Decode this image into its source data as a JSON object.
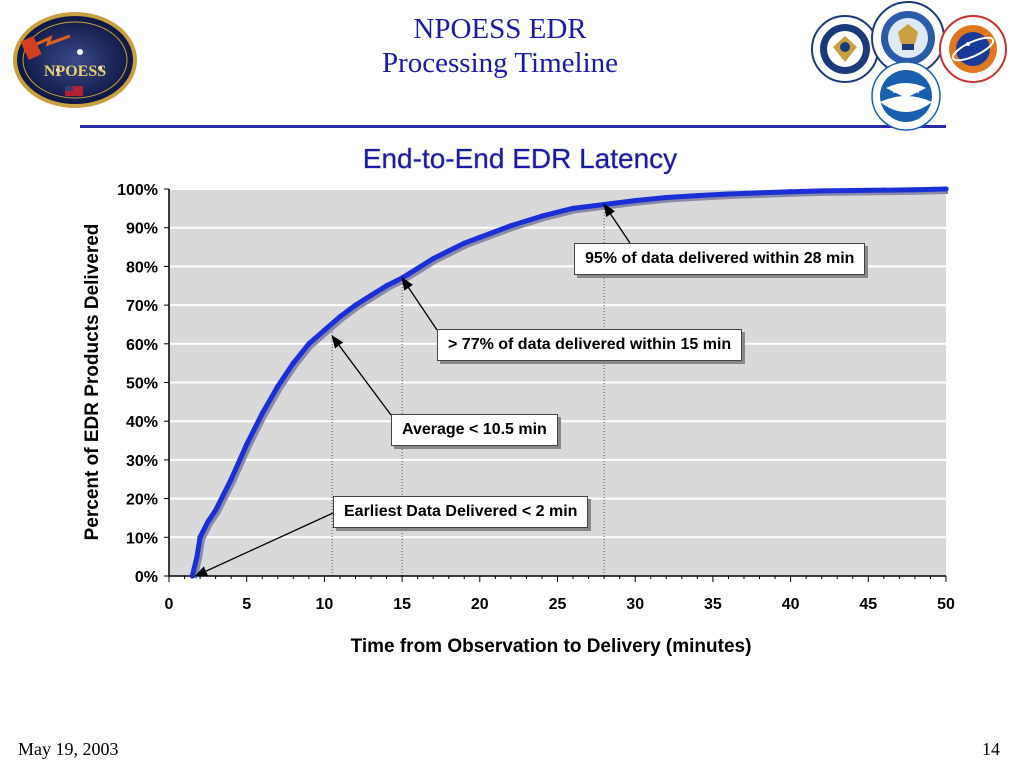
{
  "header": {
    "title_line1": "NPOESS EDR",
    "title_line2": "Processing Timeline"
  },
  "logos": {
    "left": {
      "text_top": "National Polar-orbiting Operational Environmental Satellite System",
      "text_main": "NPOESS"
    },
    "seals": [
      {
        "name": "dod-seal",
        "text": "DEPARTMENT OF DEFENSE",
        "color": "#1a3a7a"
      },
      {
        "name": "commerce-seal",
        "text": "DEPARTMENT OF COMMERCE",
        "color": "#1a3a7a"
      },
      {
        "name": "nasa-seal",
        "text": "NATIONAL AERONAUTICS AND SPACE ADMINISTRATION",
        "color": "#1a3a7a"
      },
      {
        "name": "noaa-seal",
        "text": "NOAA",
        "color": "#1a5fb0"
      }
    ]
  },
  "footer": {
    "date": "May 19, 2003",
    "page": "14"
  },
  "annotations": [
    {
      "label": "95% of data delivered within 28 min",
      "x": 28,
      "y": 96
    },
    {
      "label": "> 77% of data delivered within 15 min",
      "x": 15,
      "y": 77
    },
    {
      "label": "Average < 10.5 min",
      "x": 10.5,
      "y": 62
    },
    {
      "label": "Earliest Data Delivered < 2 min",
      "x": 1.7,
      "y": 0
    }
  ],
  "chart_data": {
    "type": "line",
    "title": "End-to-End EDR Latency",
    "xlabel": "Time from Observation to Delivery (minutes)",
    "ylabel": "Percent of EDR Products  Delivered",
    "xlim": [
      0,
      50
    ],
    "ylim": [
      0,
      100
    ],
    "x_ticks": [
      "0",
      "5",
      "10",
      "15",
      "20",
      "25",
      "30",
      "35",
      "40",
      "45",
      "50"
    ],
    "y_ticks": [
      "0%",
      "10%",
      "20%",
      "30%",
      "40%",
      "50%",
      "60%",
      "70%",
      "80%",
      "90%",
      "100%"
    ],
    "grid": true,
    "reference_lines_x": [
      10.5,
      15,
      28
    ],
    "series": [
      {
        "color": "#1a2fd6",
        "x": [
          1.5,
          1.8,
          2,
          2.5,
          3,
          3.5,
          4,
          5,
          6,
          7,
          8,
          9,
          10,
          11,
          12,
          13,
          14,
          15,
          16,
          17,
          18,
          19,
          20,
          22,
          24,
          26,
          28,
          30,
          32,
          34,
          36,
          38,
          40,
          42,
          44,
          46,
          48,
          50
        ],
        "y": [
          0,
          5,
          10,
          14,
          17,
          21,
          25,
          34,
          42,
          49,
          55,
          60,
          63.5,
          67,
          70,
          72.5,
          75,
          77,
          79.5,
          82,
          84,
          86,
          87.5,
          90.5,
          93,
          95,
          96,
          97,
          97.8,
          98.3,
          98.7,
          99,
          99.3,
          99.5,
          99.6,
          99.7,
          99.8,
          100
        ]
      }
    ]
  }
}
